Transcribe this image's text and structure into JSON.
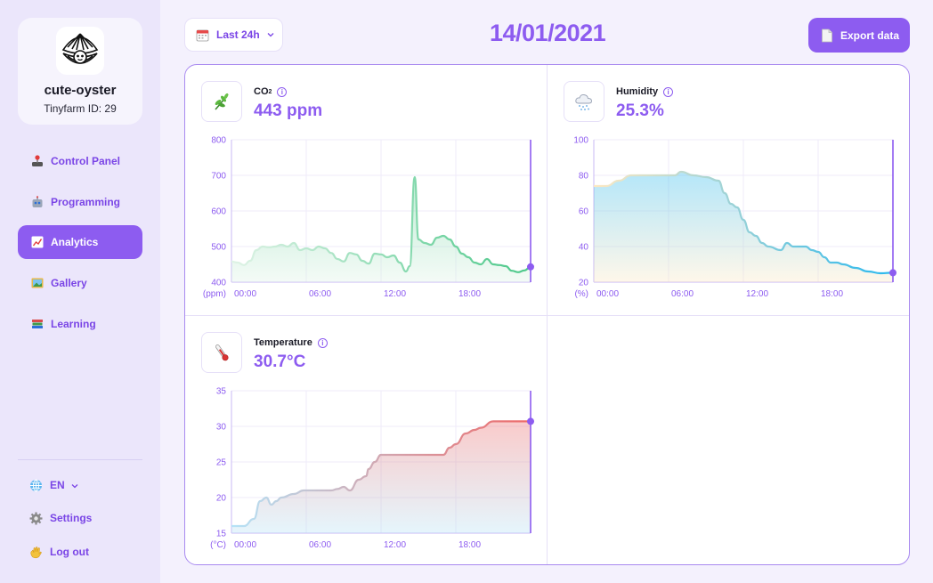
{
  "sidebar": {
    "profile": {
      "name": "cute-oyster",
      "farm_id": "Tinyfarm ID: 29",
      "avatar_icon": "oyster-avatar"
    },
    "nav": [
      {
        "label": "Control Panel",
        "icon": "joystick-icon",
        "active": false
      },
      {
        "label": "Programming",
        "icon": "robot-icon",
        "active": false
      },
      {
        "label": "Analytics",
        "icon": "chart-icon",
        "active": true
      },
      {
        "label": "Gallery",
        "icon": "picture-icon",
        "active": false
      },
      {
        "label": "Learning",
        "icon": "books-icon",
        "active": false
      }
    ],
    "language": "EN",
    "settings_label": "Settings",
    "logout_label": "Log out"
  },
  "topbar": {
    "range_label": "Last 24h",
    "date": "14/01/2021",
    "export_label": "Export data"
  },
  "colors": {
    "accent": "#8d5cf0",
    "sidebar_bg": "#ebe6fb",
    "page_bg": "#f4f1fd"
  },
  "cards": {
    "co2": {
      "title": "CO",
      "title_sub": "2",
      "value": "443 ppm",
      "icon": "plant-icon"
    },
    "humidity": {
      "title": "Humidity",
      "value": "25.3%",
      "icon": "snow-cloud-icon"
    },
    "temperature": {
      "title": "Temperature",
      "value": "30.7°C",
      "icon": "thermometer-icon"
    }
  },
  "chart_data": [
    {
      "type": "area",
      "title": "CO2",
      "ylabel": "(ppm)",
      "ylim": [
        400,
        800
      ],
      "yticks": [
        "800",
        "700",
        "600",
        "500",
        "400"
      ],
      "xticks": [
        "00:00",
        "06:00",
        "12:00",
        "18:00"
      ],
      "x_hours": [
        0,
        0.5,
        1,
        1.5,
        2,
        2.5,
        3,
        3.5,
        4,
        4.5,
        5,
        5.5,
        6,
        6.5,
        7,
        7.5,
        8,
        8.5,
        9,
        9.5,
        10,
        10.5,
        11,
        11.5,
        12,
        12.5,
        13,
        13.5,
        14,
        14.3,
        14.7,
        15,
        15.5,
        16,
        16.5,
        17,
        17.5,
        18,
        18.5,
        19,
        19.5,
        20,
        20.5,
        21,
        21.5,
        22,
        22.5,
        23,
        23.5,
        24
      ],
      "values": [
        458,
        455,
        448,
        460,
        490,
        500,
        498,
        500,
        505,
        500,
        510,
        490,
        495,
        490,
        500,
        495,
        482,
        465,
        458,
        482,
        478,
        460,
        452,
        480,
        478,
        470,
        475,
        455,
        430,
        445,
        695,
        520,
        510,
        505,
        525,
        530,
        520,
        500,
        480,
        470,
        455,
        450,
        465,
        450,
        448,
        445,
        432,
        428,
        433,
        443
      ],
      "gradient": [
        "#4bc889",
        "#dff3e6"
      ],
      "current": "443 ppm"
    },
    {
      "type": "area",
      "title": "Humidity",
      "ylabel": "(%)",
      "ylim": [
        20,
        100
      ],
      "yticks": [
        "100",
        "80",
        "60",
        "40",
        "20"
      ],
      "xticks": [
        "00:00",
        "06:00",
        "12:00",
        "18:00"
      ],
      "x_hours": [
        0,
        1,
        2,
        3,
        4,
        5,
        6,
        6.5,
        7,
        8,
        9,
        10,
        10.5,
        11,
        11.5,
        12,
        12.5,
        13,
        13.5,
        14,
        15,
        15.5,
        16,
        16.5,
        17,
        17.5,
        18,
        18.5,
        19,
        19.5,
        20,
        21,
        22,
        23,
        24
      ],
      "values": [
        74,
        74,
        77,
        80,
        80,
        80,
        80,
        80,
        82,
        80,
        79,
        77,
        70,
        64,
        62,
        55,
        48,
        46,
        42,
        40,
        38,
        42,
        40,
        40,
        40,
        38,
        37,
        34,
        31,
        31,
        30,
        28,
        26,
        25,
        25.3
      ],
      "gradient": [
        "#29b8ee",
        "#fde8c2"
      ],
      "current": "25.3%"
    },
    {
      "type": "area",
      "title": "Temperature",
      "ylabel": "(°C)",
      "ylim": [
        15,
        35
      ],
      "yticks": [
        "35",
        "30",
        "25",
        "20",
        "15"
      ],
      "xticks": [
        "00:00",
        "06:00",
        "12:00",
        "18:00"
      ],
      "x_hours": [
        0,
        1,
        1.8,
        2.3,
        2.8,
        3.2,
        3.6,
        4,
        5,
        5.8,
        6.2,
        7,
        8,
        8.5,
        9,
        9.5,
        10.2,
        10.8,
        11,
        11.5,
        12,
        13,
        14,
        15,
        16,
        17,
        17.5,
        18,
        18.8,
        19.5,
        20,
        21,
        22,
        23,
        24
      ],
      "values": [
        16,
        16,
        17,
        19.5,
        20,
        19,
        19.5,
        20,
        20.5,
        21,
        21,
        21,
        21,
        21.2,
        21.5,
        21,
        22.5,
        23,
        24,
        25,
        26,
        26,
        26,
        26,
        26,
        26,
        27,
        27.5,
        29,
        29.5,
        29.8,
        30.7,
        30.7,
        30.7,
        30.7
      ],
      "gradient": [
        "#ee6a6a",
        "#b5e3f7"
      ],
      "current": "30.7°C"
    }
  ]
}
